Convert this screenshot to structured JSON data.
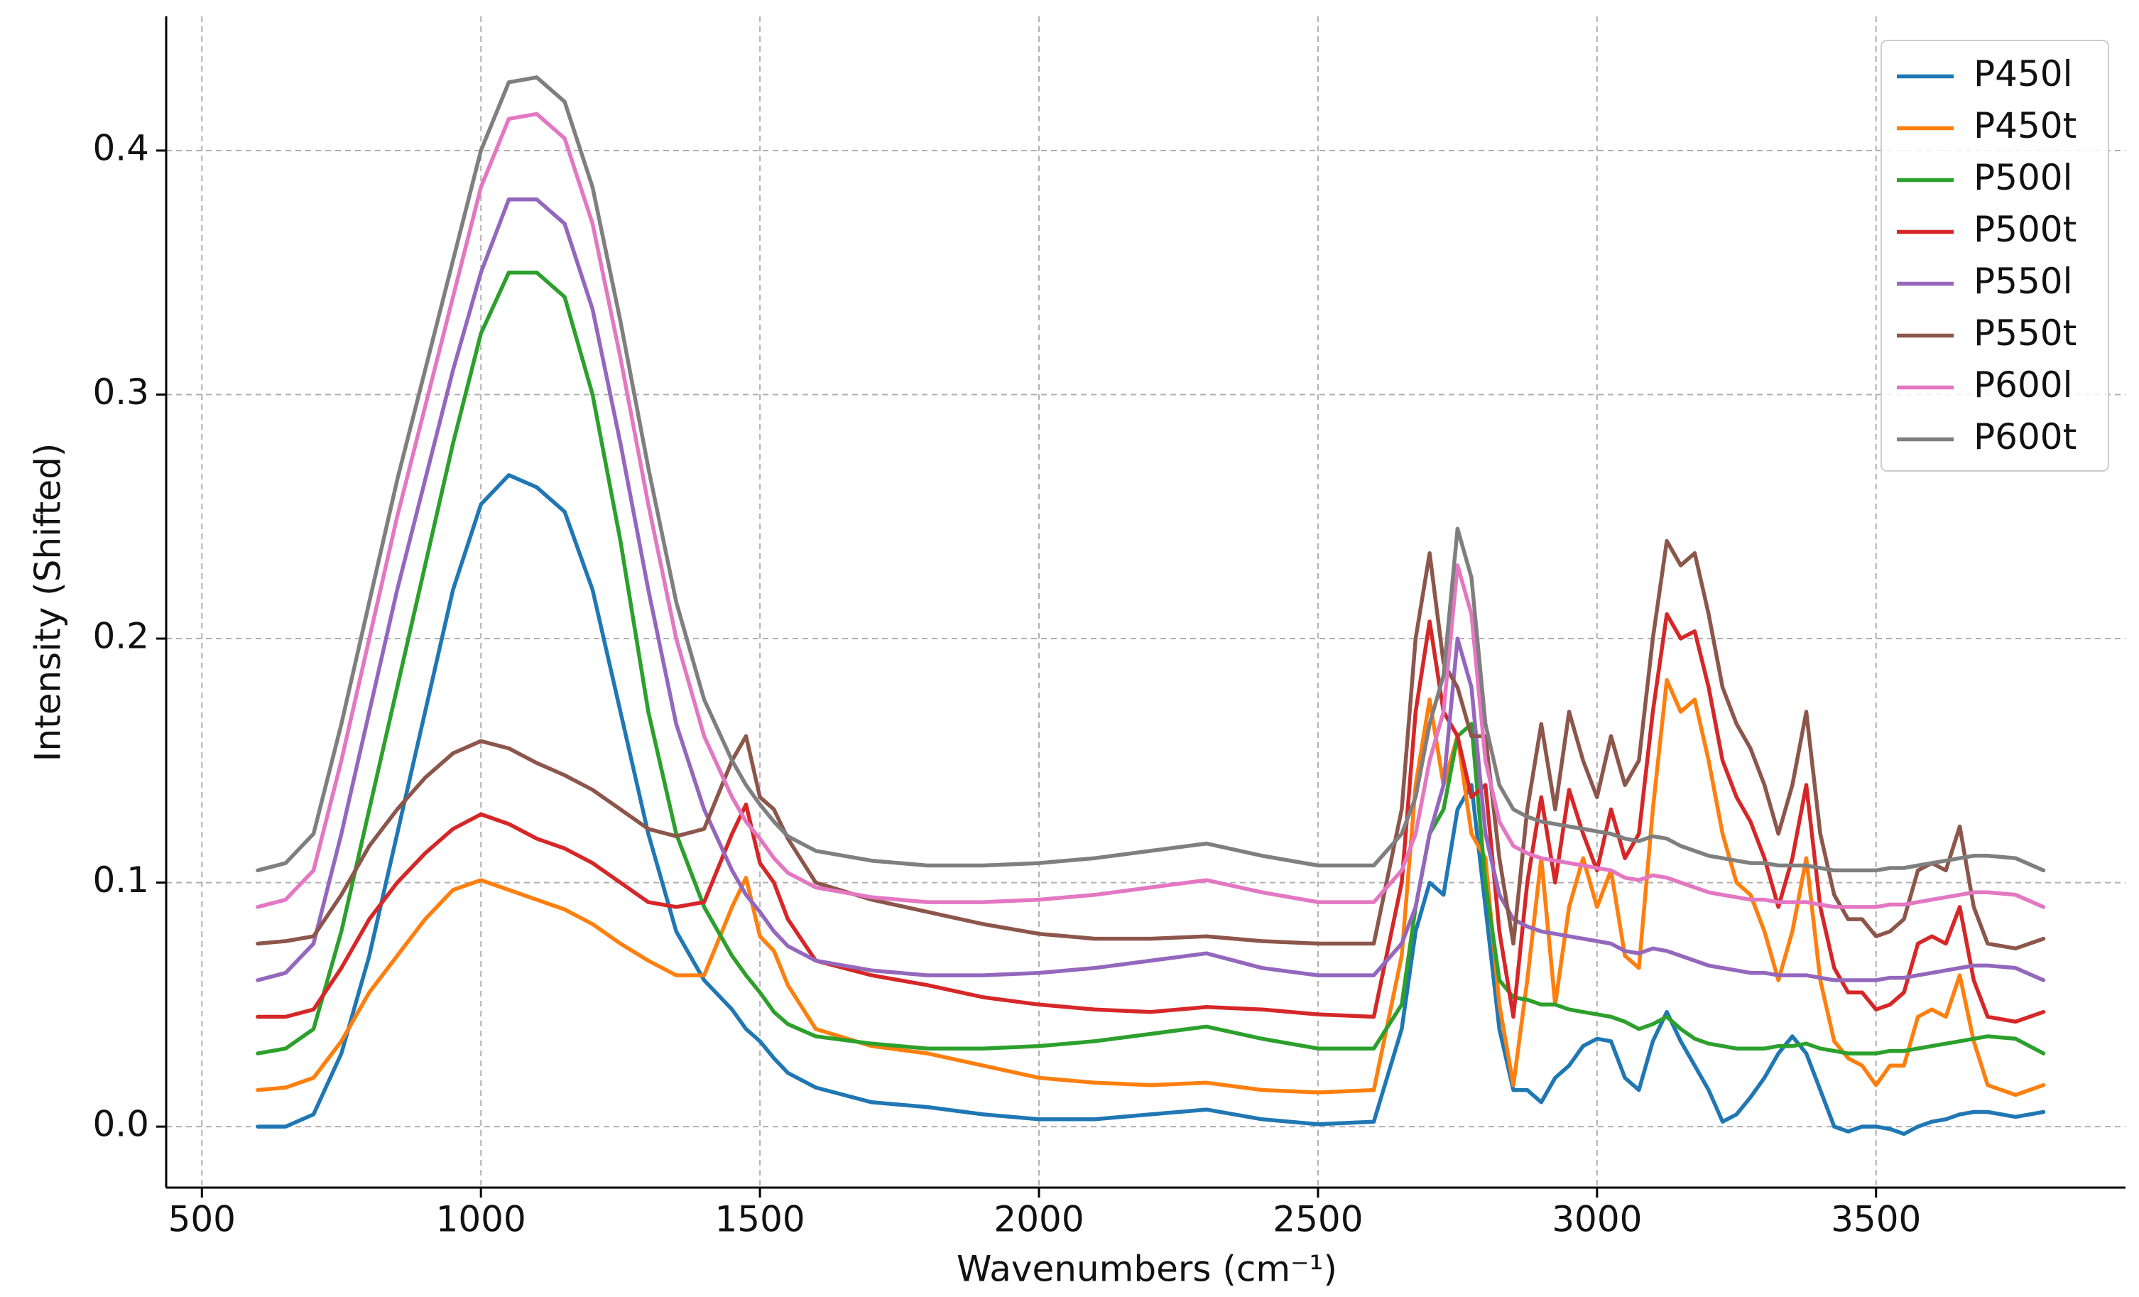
{
  "chart_data": {
    "type": "line",
    "xlabel": "Wavenumbers (cm⁻¹)",
    "ylabel": "Intensity (Shifted)",
    "x": [
      600,
      650,
      700,
      750,
      800,
      850,
      900,
      950,
      1000,
      1050,
      1100,
      1150,
      1200,
      1250,
      1300,
      1350,
      1400,
      1450,
      1475,
      1500,
      1525,
      1550,
      1600,
      1700,
      1800,
      1900,
      2000,
      2100,
      2200,
      2300,
      2400,
      2500,
      2600,
      2650,
      2675,
      2700,
      2725,
      2750,
      2775,
      2800,
      2825,
      2850,
      2875,
      2900,
      2925,
      2950,
      2975,
      3000,
      3025,
      3050,
      3075,
      3100,
      3125,
      3150,
      3175,
      3200,
      3225,
      3250,
      3275,
      3300,
      3325,
      3350,
      3375,
      3400,
      3425,
      3450,
      3475,
      3500,
      3525,
      3550,
      3575,
      3600,
      3625,
      3650,
      3675,
      3700,
      3750,
      3800
    ],
    "series": [
      {
        "name": "P450l",
        "color": "#1f77b4",
        "values": [
          0,
          0,
          0.005,
          0.03,
          0.07,
          0.12,
          0.17,
          0.22,
          0.255,
          0.267,
          0.262,
          0.252,
          0.22,
          0.17,
          0.12,
          0.08,
          0.06,
          0.048,
          0.04,
          0.035,
          0.028,
          0.022,
          0.016,
          0.01,
          0.008,
          0.005,
          0.003,
          0.003,
          0.005,
          0.007,
          0.003,
          0.001,
          0.002,
          0.04,
          0.08,
          0.1,
          0.095,
          0.13,
          0.14,
          0.09,
          0.04,
          0.015,
          0.015,
          0.01,
          0.02,
          0.025,
          0.033,
          0.036,
          0.035,
          0.02,
          0.015,
          0.035,
          0.047,
          0.035,
          0.025,
          0.015,
          0.002,
          0.005,
          0.012,
          0.02,
          0.03,
          0.037,
          0.03,
          0.015,
          0,
          -0.002,
          0,
          0,
          -0.001,
          -0.003,
          0,
          0.002,
          0.003,
          0.005,
          0.006,
          0.006,
          0.004,
          0.006
        ]
      },
      {
        "name": "P450t",
        "color": "#ff7f0e",
        "values": [
          0.015,
          0.016,
          0.02,
          0.035,
          0.055,
          0.07,
          0.085,
          0.097,
          0.101,
          0.097,
          0.093,
          0.089,
          0.083,
          0.075,
          0.068,
          0.062,
          0.062,
          0.09,
          0.102,
          0.078,
          0.072,
          0.058,
          0.04,
          0.033,
          0.03,
          0.025,
          0.02,
          0.018,
          0.017,
          0.018,
          0.015,
          0.014,
          0.015,
          0.07,
          0.14,
          0.175,
          0.14,
          0.16,
          0.12,
          0.11,
          0.05,
          0.017,
          0.06,
          0.11,
          0.05,
          0.09,
          0.11,
          0.09,
          0.105,
          0.07,
          0.065,
          0.13,
          0.183,
          0.17,
          0.175,
          0.15,
          0.12,
          0.1,
          0.095,
          0.08,
          0.06,
          0.08,
          0.11,
          0.06,
          0.035,
          0.028,
          0.025,
          0.017,
          0.025,
          0.025,
          0.045,
          0.048,
          0.045,
          0.062,
          0.035,
          0.017,
          0.013,
          0.017
        ]
      },
      {
        "name": "P500l",
        "color": "#2ca02c",
        "values": [
          0.03,
          0.032,
          0.04,
          0.08,
          0.13,
          0.18,
          0.23,
          0.28,
          0.325,
          0.35,
          0.35,
          0.34,
          0.3,
          0.24,
          0.17,
          0.12,
          0.09,
          0.07,
          0.062,
          0.055,
          0.047,
          0.042,
          0.037,
          0.034,
          0.032,
          0.032,
          0.033,
          0.035,
          0.038,
          0.041,
          0.036,
          0.032,
          0.032,
          0.05,
          0.09,
          0.12,
          0.13,
          0.16,
          0.165,
          0.1,
          0.06,
          0.053,
          0.052,
          0.05,
          0.05,
          0.048,
          0.047,
          0.046,
          0.045,
          0.043,
          0.04,
          0.042,
          0.045,
          0.04,
          0.036,
          0.034,
          0.033,
          0.032,
          0.032,
          0.032,
          0.033,
          0.033,
          0.034,
          0.032,
          0.031,
          0.03,
          0.03,
          0.03,
          0.031,
          0.031,
          0.032,
          0.033,
          0.034,
          0.035,
          0.036,
          0.037,
          0.036,
          0.03
        ]
      },
      {
        "name": "P500t",
        "color": "#d62728",
        "values": [
          0.045,
          0.045,
          0.048,
          0.065,
          0.085,
          0.1,
          0.112,
          0.122,
          0.128,
          0.124,
          0.118,
          0.114,
          0.108,
          0.1,
          0.092,
          0.09,
          0.092,
          0.12,
          0.132,
          0.108,
          0.1,
          0.085,
          0.068,
          0.062,
          0.058,
          0.053,
          0.05,
          0.048,
          0.047,
          0.049,
          0.048,
          0.046,
          0.045,
          0.1,
          0.17,
          0.207,
          0.17,
          0.16,
          0.135,
          0.14,
          0.08,
          0.045,
          0.1,
          0.135,
          0.1,
          0.138,
          0.12,
          0.105,
          0.13,
          0.11,
          0.12,
          0.17,
          0.21,
          0.2,
          0.203,
          0.18,
          0.15,
          0.135,
          0.125,
          0.11,
          0.09,
          0.11,
          0.14,
          0.09,
          0.065,
          0.055,
          0.055,
          0.048,
          0.05,
          0.055,
          0.075,
          0.078,
          0.075,
          0.09,
          0.06,
          0.045,
          0.043,
          0.047
        ]
      },
      {
        "name": "P550l",
        "color": "#9467bd",
        "values": [
          0.06,
          0.063,
          0.075,
          0.12,
          0.17,
          0.22,
          0.265,
          0.31,
          0.35,
          0.38,
          0.38,
          0.37,
          0.335,
          0.28,
          0.22,
          0.165,
          0.13,
          0.105,
          0.095,
          0.088,
          0.08,
          0.074,
          0.068,
          0.064,
          0.062,
          0.062,
          0.063,
          0.065,
          0.068,
          0.071,
          0.065,
          0.062,
          0.062,
          0.075,
          0.09,
          0.12,
          0.14,
          0.2,
          0.18,
          0.12,
          0.095,
          0.085,
          0.082,
          0.08,
          0.079,
          0.078,
          0.077,
          0.076,
          0.075,
          0.072,
          0.071,
          0.073,
          0.072,
          0.07,
          0.068,
          0.066,
          0.065,
          0.064,
          0.063,
          0.063,
          0.062,
          0.062,
          0.062,
          0.061,
          0.06,
          0.06,
          0.06,
          0.06,
          0.061,
          0.061,
          0.062,
          0.063,
          0.064,
          0.065,
          0.066,
          0.066,
          0.065,
          0.06
        ]
      },
      {
        "name": "P550t",
        "color": "#8c564b",
        "values": [
          0.075,
          0.076,
          0.078,
          0.095,
          0.115,
          0.13,
          0.143,
          0.153,
          0.158,
          0.155,
          0.149,
          0.144,
          0.138,
          0.13,
          0.122,
          0.119,
          0.122,
          0.15,
          0.16,
          0.135,
          0.13,
          0.118,
          0.1,
          0.093,
          0.088,
          0.083,
          0.079,
          0.077,
          0.077,
          0.078,
          0.076,
          0.075,
          0.075,
          0.13,
          0.2,
          0.235,
          0.19,
          0.18,
          0.16,
          0.16,
          0.11,
          0.075,
          0.13,
          0.165,
          0.13,
          0.17,
          0.15,
          0.135,
          0.16,
          0.14,
          0.15,
          0.2,
          0.24,
          0.23,
          0.235,
          0.21,
          0.18,
          0.165,
          0.155,
          0.14,
          0.12,
          0.14,
          0.17,
          0.12,
          0.095,
          0.085,
          0.085,
          0.078,
          0.08,
          0.085,
          0.105,
          0.108,
          0.105,
          0.123,
          0.09,
          0.075,
          0.073,
          0.077
        ]
      },
      {
        "name": "P600l",
        "color": "#e377c2",
        "values": [
          0.09,
          0.093,
          0.105,
          0.15,
          0.2,
          0.25,
          0.295,
          0.34,
          0.385,
          0.413,
          0.415,
          0.405,
          0.37,
          0.315,
          0.255,
          0.2,
          0.16,
          0.135,
          0.125,
          0.118,
          0.11,
          0.104,
          0.098,
          0.094,
          0.092,
          0.092,
          0.093,
          0.095,
          0.098,
          0.101,
          0.096,
          0.092,
          0.092,
          0.105,
          0.12,
          0.15,
          0.17,
          0.23,
          0.21,
          0.15,
          0.125,
          0.115,
          0.112,
          0.11,
          0.109,
          0.108,
          0.107,
          0.106,
          0.105,
          0.102,
          0.101,
          0.103,
          0.102,
          0.1,
          0.098,
          0.096,
          0.095,
          0.094,
          0.093,
          0.093,
          0.092,
          0.092,
          0.092,
          0.091,
          0.09,
          0.09,
          0.09,
          0.09,
          0.091,
          0.091,
          0.092,
          0.093,
          0.094,
          0.095,
          0.096,
          0.096,
          0.095,
          0.09
        ]
      },
      {
        "name": "P600t",
        "color": "#7f7f7f",
        "values": [
          0.105,
          0.108,
          0.12,
          0.165,
          0.215,
          0.265,
          0.31,
          0.355,
          0.4,
          0.428,
          0.43,
          0.42,
          0.385,
          0.33,
          0.27,
          0.215,
          0.175,
          0.15,
          0.14,
          0.132,
          0.125,
          0.119,
          0.113,
          0.109,
          0.107,
          0.107,
          0.108,
          0.11,
          0.113,
          0.116,
          0.111,
          0.107,
          0.107,
          0.12,
          0.135,
          0.165,
          0.185,
          0.245,
          0.225,
          0.165,
          0.14,
          0.13,
          0.127,
          0.125,
          0.124,
          0.123,
          0.122,
          0.121,
          0.12,
          0.118,
          0.117,
          0.119,
          0.118,
          0.115,
          0.113,
          0.111,
          0.11,
          0.109,
          0.108,
          0.108,
          0.107,
          0.107,
          0.107,
          0.106,
          0.105,
          0.105,
          0.105,
          0.105,
          0.106,
          0.106,
          0.107,
          0.108,
          0.109,
          0.11,
          0.111,
          0.111,
          0.11,
          0.105
        ]
      }
    ],
    "xlim": [
      436,
      3947
    ],
    "ylim": [
      -0.025,
      0.455
    ],
    "xticks": [
      500,
      1000,
      1500,
      2000,
      2500,
      3000,
      3500
    ],
    "yticks": [
      {
        "value": 0,
        "label": "0.0"
      },
      0.1,
      0.2,
      0.3,
      0.4
    ],
    "grid": true,
    "legend": "upper right"
  }
}
